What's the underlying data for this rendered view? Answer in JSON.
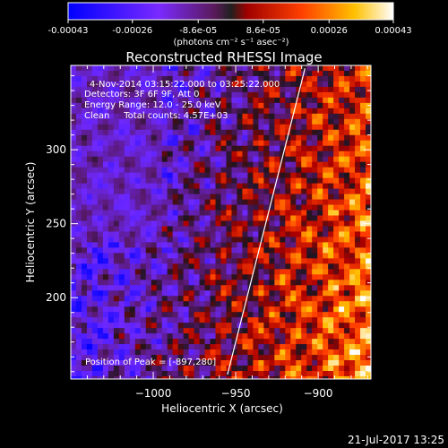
{
  "colorbar": {
    "tick_labels": [
      "-0.00043",
      "-0.00026",
      "-8.6e-05",
      "8.6e-05",
      "0.00026",
      "0.00043"
    ],
    "tick_values": [
      -0.00043,
      -0.00026,
      -8.6e-05,
      8.6e-05,
      0.00026,
      0.00043
    ],
    "range": [
      -0.00043,
      0.00043
    ],
    "units_label": "(photons cm⁻² s⁻¹ asec⁻²)",
    "colormap": "rainbow-like: blue → violet → red → orange → yellow → white"
  },
  "chart_data": {
    "type": "heatmap",
    "title": "Reconstructed RHESSI Image",
    "xlabel": "Heliocentric X (arcsec)",
    "ylabel": "Heliocentric Y (arcsec)",
    "xlim": [
      -1050,
      -868
    ],
    "ylim": [
      145,
      357
    ],
    "x_ticks": [
      -1000,
      -950,
      -900
    ],
    "y_ticks": [
      200,
      250,
      300
    ],
    "x_tick_labels": [
      "−1000",
      "−950",
      "−900"
    ],
    "y_tick_labels": [
      "200",
      "250",
      "300"
    ],
    "info_lines": [
      "4-Nov-2014 03:15:22.000 to 03:25:22.000",
      "Detectors: 3F 6F 9F, Att 0",
      "Energy Range: 12.0 - 25.0 keV",
      "Clean     Total counts: 4.57E+03"
    ],
    "peak_label": "Position of Peak = [-897,280]",
    "peak_position": [
      -897,
      280
    ],
    "limb_line": {
      "points": [
        [
          -955,
          148
        ],
        [
          -908,
          355
        ]
      ]
    },
    "grid": false
  },
  "timestamp": "21-Jul-2017 13:25"
}
